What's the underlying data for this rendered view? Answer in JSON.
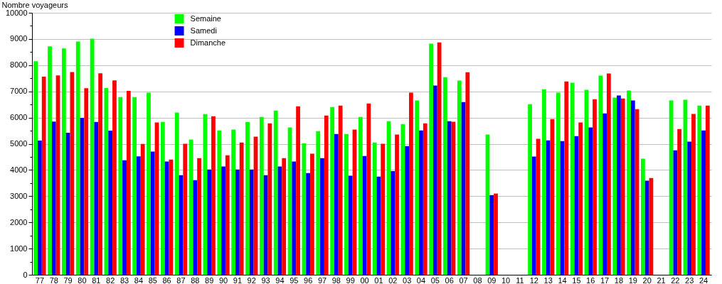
{
  "chart_data": {
    "type": "bar",
    "ylabel": "Nombre voyageurs",
    "categories": [
      "77",
      "78",
      "79",
      "80",
      "81",
      "82",
      "83",
      "84",
      "85",
      "86",
      "87",
      "88",
      "89",
      "90",
      "91",
      "92",
      "93",
      "94",
      "95",
      "96",
      "97",
      "98",
      "99",
      "00",
      "01",
      "02",
      "03",
      "04",
      "05",
      "06",
      "07",
      "08",
      "09",
      "10",
      "11",
      "12",
      "13",
      "14",
      "15",
      "16",
      "17",
      "18",
      "19",
      "20",
      "21",
      "22",
      "23",
      "24"
    ],
    "series": [
      {
        "name": "Semaine",
        "color": "#00ff00",
        "values": [
          8150,
          8720,
          8640,
          8900,
          9010,
          7130,
          6780,
          6780,
          6950,
          5830,
          6190,
          5160,
          6130,
          5510,
          5540,
          5830,
          6020,
          6270,
          5620,
          5020,
          5480,
          6400,
          5370,
          6020,
          5050,
          5860,
          5750,
          6650,
          8820,
          7540,
          7410,
          null,
          5350,
          null,
          null,
          6510,
          7080,
          6950,
          7330,
          7060,
          7600,
          6760,
          7030,
          4430,
          null,
          6650,
          6680,
          6460
        ]
      },
      {
        "name": "Samedi",
        "color": "#0000ff",
        "values": [
          5120,
          5850,
          5420,
          5990,
          5830,
          5500,
          4370,
          4520,
          4700,
          4320,
          3800,
          3610,
          4020,
          4130,
          4020,
          4020,
          3800,
          4130,
          4320,
          3880,
          4450,
          5370,
          3780,
          4530,
          3750,
          3960,
          4910,
          5510,
          7220,
          5860,
          6590,
          null,
          3040,
          null,
          null,
          4510,
          5130,
          5100,
          5290,
          5620,
          6160,
          6840,
          6650,
          3590,
          null,
          4750,
          5080,
          5510
        ]
      },
      {
        "name": "Dimanche",
        "color": "#ff0000",
        "values": [
          7560,
          7610,
          7740,
          7120,
          7690,
          7420,
          7020,
          4990,
          5810,
          4400,
          5000,
          4450,
          6050,
          4560,
          5050,
          5270,
          5780,
          4450,
          6430,
          4620,
          6080,
          6460,
          5540,
          6540,
          5000,
          5350,
          6950,
          5780,
          8870,
          5840,
          7730,
          null,
          3100,
          null,
          null,
          5190,
          5940,
          7380,
          5810,
          6700,
          7680,
          6730,
          6320,
          3690,
          null,
          5560,
          6140,
          6460
        ]
      }
    ],
    "ylim": [
      0,
      10000
    ],
    "yticks": [
      0,
      {
        "value": 500,
        "label": null
      },
      1000,
      {
        "value": 1500,
        "label": null
      },
      2000,
      {
        "value": 2500,
        "label": null
      },
      3000,
      {
        "value": 3500,
        "label": null
      },
      4000,
      {
        "value": 4500,
        "label": null
      },
      5000,
      {
        "value": 5500,
        "label": null
      },
      6000,
      {
        "value": 6500,
        "label": null
      },
      7000,
      {
        "value": 7500,
        "label": null
      },
      8000,
      {
        "value": 8500,
        "label": null
      },
      9000,
      {
        "value": 9500,
        "label": null
      },
      10000
    ],
    "grid": "y",
    "legend": "top left"
  }
}
